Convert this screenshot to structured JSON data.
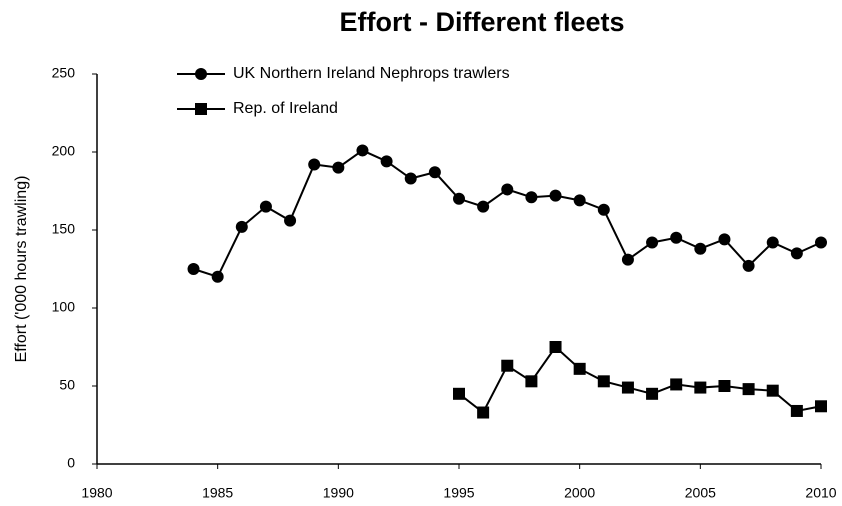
{
  "chart_data": {
    "type": "line",
    "title": "Effort - Different fleets",
    "y_label": "Effort ('000 hours trawling)",
    "x": [
      1984,
      1985,
      1986,
      1987,
      1988,
      1989,
      1990,
      1991,
      1992,
      1993,
      1994,
      1995,
      1996,
      1997,
      1998,
      1999,
      2000,
      2001,
      2002,
      2003,
      2004,
      2005,
      2006,
      2007,
      2008,
      2009,
      2010
    ],
    "series": [
      {
        "name": "UK Northern Ireland Nephrops trawlers",
        "color": "#000000",
        "marker": "circle",
        "values": [
          125,
          120,
          152,
          165,
          156,
          192,
          190,
          201,
          194,
          183,
          187,
          170,
          165,
          176,
          171,
          172,
          169,
          163,
          131,
          142,
          145,
          138,
          144,
          127,
          142,
          135,
          142
        ]
      },
      {
        "name": "Rep. of Ireland",
        "color": "#000000",
        "marker": "square",
        "values": [
          null,
          null,
          null,
          null,
          null,
          null,
          null,
          null,
          null,
          null,
          null,
          45,
          33,
          63,
          53,
          75,
          61,
          53,
          49,
          45,
          51,
          49,
          50,
          48,
          47,
          34,
          37
        ]
      }
    ],
    "xlim": [
      1980,
      2010
    ],
    "xticks": [
      1980,
      1985,
      1990,
      1995,
      2000,
      2005,
      2010
    ],
    "ylim": [
      0,
      250
    ],
    "yticks": [
      0,
      50,
      100,
      150,
      200,
      250
    ],
    "grid": false
  }
}
